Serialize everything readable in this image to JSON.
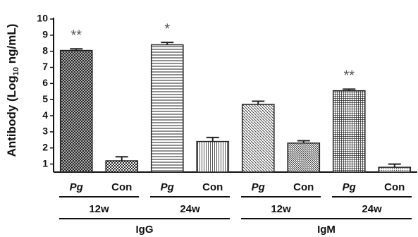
{
  "chart_data": {
    "type": "bar",
    "y_label": [
      "Antibody (Log",
      "10",
      " ng/mL)"
    ],
    "categories": [
      "Pg",
      "Con",
      "Pg",
      "Con",
      "Pg",
      "Con",
      "Pg",
      "Con"
    ],
    "groups": [
      {
        "label": "IgG",
        "subgroups": [
          "12w",
          "24w"
        ]
      },
      {
        "label": "IgM",
        "subgroups": [
          "12w",
          "24w"
        ]
      }
    ],
    "values": [
      8.05,
      1.2,
      8.4,
      2.4,
      4.7,
      2.3,
      5.55,
      0.8
    ],
    "errors": [
      0.1,
      0.25,
      0.15,
      0.25,
      0.2,
      0.15,
      0.1,
      0.2
    ],
    "patterns": [
      "crosshatch",
      "checker",
      "hlines",
      "vlines",
      "diag",
      "diagdense",
      "grid",
      "dots"
    ],
    "annotations": [
      {
        "category": 0,
        "text": "**"
      },
      {
        "category": 2,
        "text": "*"
      },
      {
        "category": 6,
        "text": "**"
      }
    ],
    "ylim": [
      0.5,
      10
    ],
    "yticks": [
      1,
      2,
      3,
      4,
      5,
      6,
      7,
      8,
      9,
      10
    ],
    "color": "#222"
  }
}
